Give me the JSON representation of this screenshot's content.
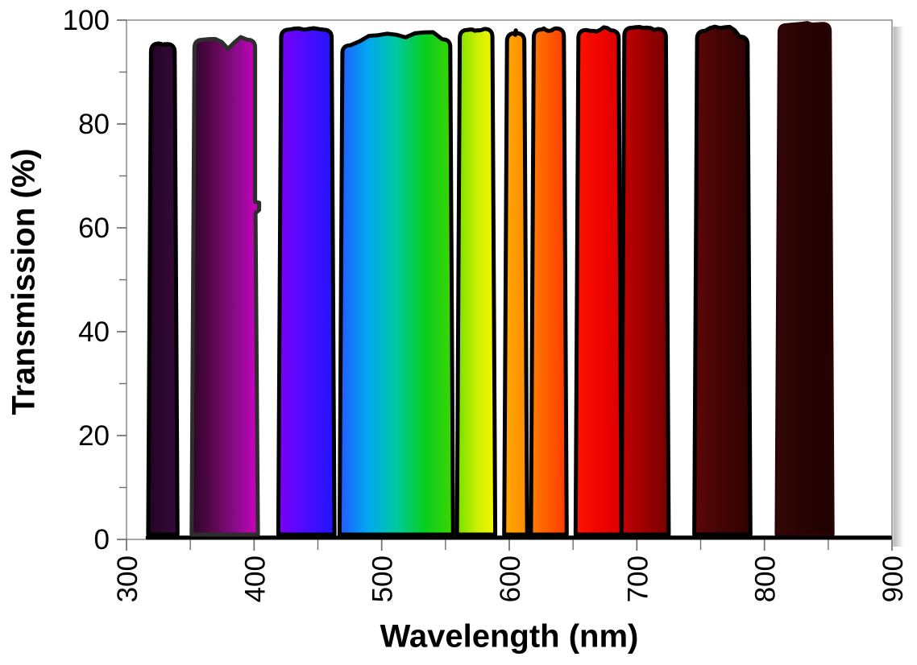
{
  "chart_data": {
    "type": "area",
    "title": "",
    "xlabel": "Wavelength (nm)",
    "ylabel": "Transmission (%)",
    "xlim": [
      300,
      900
    ],
    "ylim": [
      0,
      100
    ],
    "x_major_ticks": [
      300,
      400,
      500,
      600,
      700,
      800,
      900
    ],
    "x_minor_ticks": [
      350,
      450,
      550,
      650,
      750,
      850
    ],
    "y_major_ticks": [
      0,
      20,
      40,
      60,
      80,
      100
    ],
    "y_minor_ticks": [
      10,
      30,
      50,
      70,
      90
    ],
    "grid": false,
    "legend": false,
    "background_color": "#ffffff",
    "frame_color": "#8c8c8c",
    "tick_color": "#6e6e6e",
    "outline_color": "#000000",
    "out_of_band_floor": {
      "from_nm": 315,
      "to_nm": 900,
      "transmission_pct": 0.5
    },
    "bands": [
      {
        "name": "band-317-340",
        "from_nm": 317,
        "to_nm": 340,
        "peak_pct": 95.5,
        "noise_pct": 0.5,
        "colors": [
          "#220420",
          "#2c0730",
          "#36083a"
        ],
        "dips": []
      },
      {
        "name": "band-351-403",
        "from_nm": 351,
        "to_nm": 403,
        "peak_pct": 96.0,
        "noise_pct": 1.1,
        "colors": [
          "#2b0526",
          "#5c0850",
          "#8c0b8c",
          "#cf00c4"
        ],
        "dips": [
          [
            0.1,
            -2.0
          ],
          [
            0.32,
            -1.3
          ],
          [
            0.55,
            -0.8
          ]
        ],
        "right_step_pct": 65,
        "outline": "#2e2e2e"
      },
      {
        "name": "band-419-463",
        "from_nm": 419,
        "to_nm": 463,
        "peak_pct": 98.3,
        "noise_pct": 0.4,
        "colors": [
          "#7d00f2",
          "#4a0bff",
          "#2114ff"
        ],
        "dips": []
      },
      {
        "name": "band-467-556",
        "from_nm": 467,
        "to_nm": 556,
        "peak_pct": 97.4,
        "noise_pct": 0.9,
        "colors": [
          "#2458ff",
          "#00a8f0",
          "#00c9a0",
          "#06cf1e",
          "#3ed600"
        ],
        "dips": [
          [
            0.02,
            -3.2
          ],
          [
            0.12,
            -1.4
          ],
          [
            0.985,
            -2.4
          ]
        ]
      },
      {
        "name": "band-559-589",
        "from_nm": 559,
        "to_nm": 589,
        "peak_pct": 98.1,
        "noise_pct": 0.5,
        "colors": [
          "#72e000",
          "#c8ee00",
          "#f8f800"
        ],
        "dips": []
      },
      {
        "name": "band-596-614",
        "from_nm": 596,
        "to_nm": 614,
        "peak_pct": 97.6,
        "noise_pct": 0.5,
        "colors": [
          "#ffa800",
          "#ff8c00"
        ],
        "dips": [
          [
            0.1,
            -1.2
          ]
        ]
      },
      {
        "name": "band-617-645",
        "from_nm": 617,
        "to_nm": 645,
        "peak_pct": 98.0,
        "noise_pct": 0.5,
        "colors": [
          "#ff7e00",
          "#ff5a00",
          "#ff3a00"
        ],
        "dips": []
      },
      {
        "name": "band-652-688",
        "from_nm": 652,
        "to_nm": 688,
        "peak_pct": 98.2,
        "noise_pct": 0.6,
        "colors": [
          "#ff1400",
          "#f00500",
          "#db0000"
        ],
        "dips": []
      },
      {
        "name": "band-688-725",
        "from_nm": 688,
        "to_nm": 725,
        "peak_pct": 98.5,
        "noise_pct": 0.5,
        "colors": [
          "#c40000",
          "#9c0000",
          "#760000"
        ],
        "dips": [
          [
            0.9,
            -1.0
          ]
        ]
      },
      {
        "name": "band-745-789",
        "from_nm": 745,
        "to_nm": 789,
        "peak_pct": 98.8,
        "noise_pct": 0.7,
        "colors": [
          "#5e0707",
          "#420404",
          "#300202"
        ],
        "dips": [
          [
            0.04,
            -3.4
          ],
          [
            0.9,
            -2.6
          ],
          [
            0.97,
            -4.2
          ]
        ]
      },
      {
        "name": "band-809-854",
        "from_nm": 809,
        "to_nm": 854,
        "peak_pct": 99.3,
        "noise_pct": 0.4,
        "colors": [
          "#340808",
          "#270303",
          "#220202"
        ],
        "dips": [],
        "outline": "#2b0505",
        "outline_width": 3
      }
    ]
  }
}
